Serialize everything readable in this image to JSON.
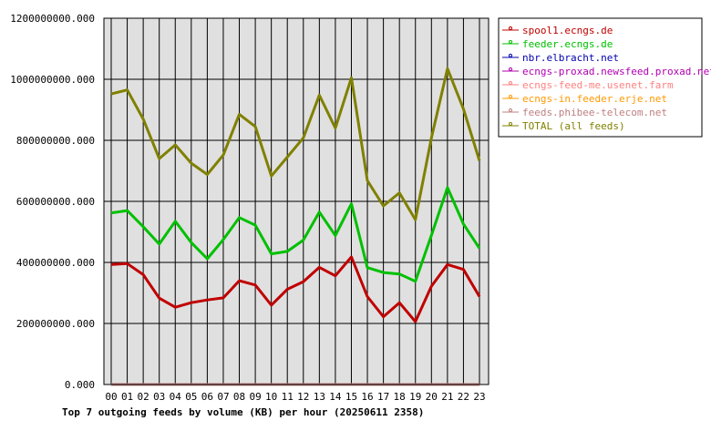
{
  "chart_data": {
    "type": "line",
    "title": "Top 7 outgoing feeds by volume (KB) per hour (20250611 2358)",
    "xlabel": "",
    "ylabel": "",
    "ylim": [
      0,
      1200000000
    ],
    "yticks": [
      0,
      200000000,
      400000000,
      600000000,
      800000000,
      1000000000,
      1200000000
    ],
    "ytick_labels": [
      "0.000",
      "200000000.000",
      "400000000.000",
      "600000000.000",
      "800000000.000",
      "1000000000.000",
      "1200000000.000"
    ],
    "grid": true,
    "legend_position": "right",
    "categories": [
      "00",
      "01",
      "02",
      "03",
      "04",
      "05",
      "06",
      "07",
      "08",
      "09",
      "10",
      "11",
      "12",
      "13",
      "14",
      "15",
      "16",
      "17",
      "18",
      "19",
      "20",
      "21",
      "22",
      "23"
    ],
    "series": [
      {
        "name": "spool1.ecngs.de",
        "color": "#c00000",
        "values": [
          393000000,
          396000000,
          360000000,
          283000000,
          253000000,
          268000000,
          277000000,
          284000000,
          340000000,
          326000000,
          260000000,
          312000000,
          337000000,
          384000000,
          356000000,
          418000000,
          288000000,
          222000000,
          268000000,
          206000000,
          322000000,
          393000000,
          377000000,
          288000000
        ]
      },
      {
        "name": "feeder.ecngs.de",
        "color": "#00c000",
        "values": [
          562000000,
          570000000,
          517000000,
          460000000,
          535000000,
          465000000,
          412000000,
          475000000,
          547000000,
          522000000,
          428000000,
          436000000,
          473000000,
          565000000,
          488000000,
          592000000,
          383000000,
          367000000,
          362000000,
          338000000,
          489000000,
          645000000,
          526000000,
          446000000
        ]
      },
      {
        "name": "nbr.elbracht.net",
        "color": "#0000b0",
        "values": [
          0,
          0,
          0,
          0,
          0,
          0,
          0,
          0,
          0,
          0,
          0,
          0,
          0,
          0,
          0,
          0,
          0,
          0,
          0,
          0,
          0,
          0,
          0,
          0
        ]
      },
      {
        "name": "ecngs-proxad.newsfeed.proxad.net",
        "color": "#b000b0",
        "values": [
          0,
          0,
          0,
          0,
          0,
          0,
          0,
          0,
          0,
          0,
          0,
          0,
          0,
          0,
          0,
          0,
          0,
          0,
          0,
          0,
          0,
          0,
          0,
          0
        ]
      },
      {
        "name": "ecngs-feed-me.usenet.farm",
        "color": "#ff8080",
        "values": [
          0,
          0,
          0,
          0,
          0,
          0,
          0,
          0,
          0,
          0,
          0,
          0,
          0,
          0,
          0,
          0,
          0,
          0,
          0,
          0,
          0,
          0,
          0,
          0
        ]
      },
      {
        "name": "ecngs-in.feeder.erje.net",
        "color": "#ff9900",
        "values": [
          0,
          0,
          0,
          0,
          0,
          0,
          0,
          0,
          0,
          0,
          0,
          0,
          0,
          0,
          0,
          0,
          0,
          0,
          0,
          0,
          0,
          0,
          0,
          0
        ]
      },
      {
        "name": "feeds.phibee-telecom.net",
        "color": "#c08080",
        "values": [
          0,
          0,
          0,
          0,
          0,
          0,
          0,
          0,
          0,
          0,
          0,
          0,
          0,
          0,
          0,
          0,
          0,
          0,
          0,
          0,
          0,
          0,
          0,
          0
        ]
      },
      {
        "name": "TOTAL (all feeds)",
        "color": "#808000",
        "values": [
          952000000,
          965000000,
          870000000,
          740000000,
          785000000,
          725000000,
          688000000,
          752000000,
          885000000,
          845000000,
          683000000,
          745000000,
          808000000,
          948000000,
          840000000,
          1005000000,
          668000000,
          585000000,
          628000000,
          540000000,
          808000000,
          1035000000,
          903000000,
          733000000
        ]
      }
    ]
  }
}
